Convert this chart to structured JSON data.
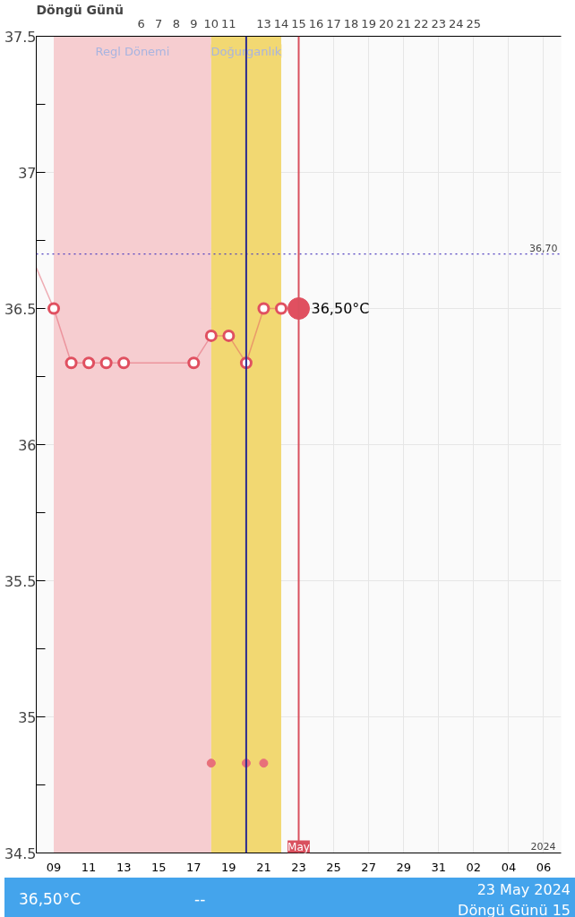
{
  "chart_data": {
    "type": "line",
    "x": [
      "2024-05-08",
      "2024-05-09",
      "2024-05-10",
      "2024-05-11",
      "2024-05-12",
      "2024-05-13",
      "2024-05-17",
      "2024-05-18",
      "2024-05-19",
      "2024-05-20",
      "2024-05-21",
      "2024-05-22",
      "2024-05-23"
    ],
    "series": [
      {
        "color": "#e05060",
        "values": [
          36.65,
          36.5,
          36.3,
          36.3,
          36.3,
          36.3,
          36.3,
          36.4,
          36.4,
          36.3,
          36.5,
          36.5,
          36.5
        ]
      },
      {
        "type": "scatter",
        "color": "#e8707a",
        "x": [
          "2024-05-18",
          "2024-05-20",
          "2024-05-21"
        ],
        "values": [
          34.83,
          34.83,
          34.83
        ]
      }
    ],
    "marker": "circle",
    "xlim": [
      "2024-05-08",
      "2024-06-07"
    ],
    "xticks": [
      {
        "value": "2024-05-09",
        "label": "09"
      },
      {
        "value": "2024-05-11",
        "label": "11"
      },
      {
        "value": "2024-05-13",
        "label": "13"
      },
      {
        "value": "2024-05-15",
        "label": "15"
      },
      {
        "value": "2024-05-17",
        "label": "17"
      },
      {
        "value": "2024-05-19",
        "label": "19"
      },
      {
        "value": "2024-05-21",
        "label": "21"
      },
      {
        "value": "2024-05-23",
        "label": "23"
      },
      {
        "value": "2024-05-25",
        "label": "25"
      },
      {
        "value": "2024-05-27",
        "label": "27"
      },
      {
        "value": "2024-05-29",
        "label": "29"
      },
      {
        "value": "2024-05-31",
        "label": "31"
      },
      {
        "value": "2024-06-02",
        "label": "02"
      },
      {
        "value": "2024-06-04",
        "label": "04"
      },
      {
        "value": "2024-06-06",
        "label": "06"
      }
    ],
    "x2label": "Döngü Günü",
    "x2lim": [
      "2024-05-08",
      "2024-06-07"
    ],
    "x2ticks": [
      {
        "value": "2024-05-14",
        "label": "6"
      },
      {
        "value": "2024-05-15",
        "label": "7"
      },
      {
        "value": "2024-05-16",
        "label": "8"
      },
      {
        "value": "2024-05-17",
        "label": "9"
      },
      {
        "value": "2024-05-18",
        "label": "10"
      },
      {
        "value": "2024-05-19",
        "label": "11"
      },
      {
        "value": "2024-05-20",
        "label": null
      },
      {
        "value": "2024-05-21",
        "label": "13"
      },
      {
        "value": "2024-05-22",
        "label": "14"
      },
      {
        "value": "2024-05-23",
        "label": "15"
      },
      {
        "value": "2024-05-24",
        "label": "16"
      },
      {
        "value": "2024-05-25",
        "label": "17"
      },
      {
        "value": "2024-05-26",
        "label": "18"
      },
      {
        "value": "2024-05-27",
        "label": "19"
      },
      {
        "value": "2024-05-28",
        "label": "20"
      },
      {
        "value": "2024-05-29",
        "label": "21"
      },
      {
        "value": "2024-05-30",
        "label": "22"
      },
      {
        "value": "2024-05-31",
        "label": "23"
      },
      {
        "value": "2024-06-01",
        "label": "24"
      },
      {
        "value": "2024-06-02",
        "label": "25"
      }
    ],
    "ylim": [
      34.5,
      37.5
    ],
    "yticks": [
      34.5,
      {
        "value": 34.75,
        "label": null
      },
      35,
      {
        "value": 35.25,
        "label": null
      },
      35.5,
      {
        "value": 35.75,
        "label": null
      },
      36,
      {
        "value": 36.25,
        "label": null
      },
      36.5,
      {
        "value": 36.75,
        "label": null
      },
      37,
      {
        "value": 37.25,
        "label": null
      },
      37.5
    ],
    "grid": true,
    "bands": [
      {
        "axis": "x",
        "from": "2024-05-09",
        "to": "2024-05-18",
        "label": "Regl Dönemi",
        "color": "#f6cdd0"
      },
      {
        "axis": "x",
        "from": "2024-05-18",
        "to": "2024-05-22",
        "label": "Doğurganlık",
        "color": "#f2d872"
      }
    ],
    "ref_lines": [
      {
        "axis": "y",
        "value": 36.7,
        "label": "36,70",
        "color": "#5040c0",
        "line_style": "dotted"
      },
      {
        "axis": "x",
        "value": "2024-05-20",
        "color": "#2a2a90",
        "line_style": "solid"
      },
      {
        "axis": "x",
        "value": "2024-05-23",
        "label": "May",
        "color": "#d9505e",
        "line_style": "solid"
      }
    ],
    "annotations": [
      {
        "text": "36,50°C",
        "x": "2024-05-23",
        "y": 36.5
      },
      "2024",
      "36,50°C",
      "--",
      "23 May 2024",
      "Döngü Günü 15"
    ]
  }
}
